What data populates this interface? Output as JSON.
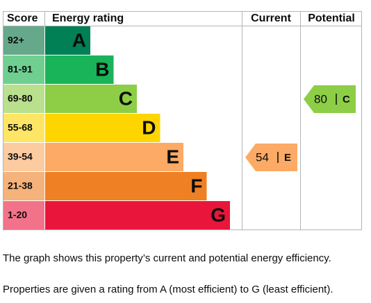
{
  "header": {
    "score": "Score",
    "energy_rating": "Energy rating",
    "current": "Current",
    "potential": "Potential"
  },
  "bands": [
    {
      "score": "92+",
      "letter": "A"
    },
    {
      "score": "81-91",
      "letter": "B"
    },
    {
      "score": "69-80",
      "letter": "C"
    },
    {
      "score": "55-68",
      "letter": "D"
    },
    {
      "score": "39-54",
      "letter": "E"
    },
    {
      "score": "21-38",
      "letter": "F"
    },
    {
      "score": "1-20",
      "letter": "G"
    }
  ],
  "current": {
    "value": 54,
    "rating": "E"
  },
  "potential": {
    "value": 80,
    "rating": "C"
  },
  "paragraphs": [
    "The graph shows this property’s current and potential energy efficiency.",
    "Properties are given a rating from A (most efficient) to G (least efficient)."
  ]
}
